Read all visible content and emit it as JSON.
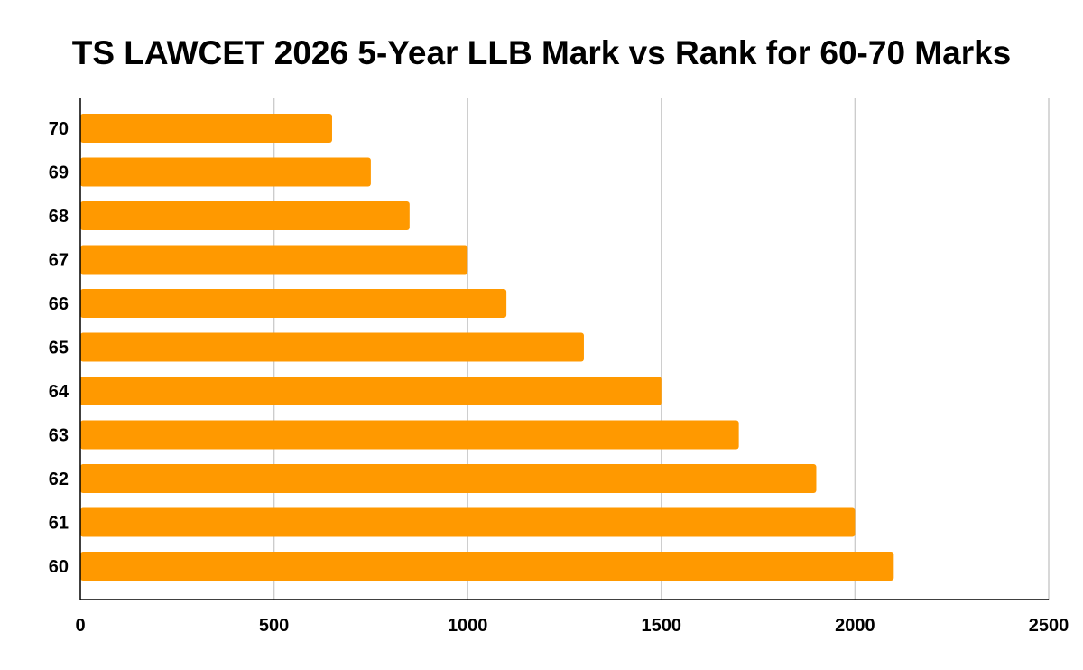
{
  "chart_data": {
    "type": "bar",
    "orientation": "horizontal",
    "title": "TS LAWCET 2026 5-Year LLB Mark vs Rank for 60-70 Marks",
    "xlabel": "",
    "ylabel": "",
    "categories": [
      "70",
      "69",
      "68",
      "67",
      "66",
      "65",
      "64",
      "63",
      "62",
      "61",
      "60"
    ],
    "values": [
      650,
      750,
      850,
      1000,
      1100,
      1300,
      1500,
      1700,
      1900,
      2000,
      2100
    ],
    "xlim": [
      0,
      2500
    ],
    "x_ticks": [
      "0",
      "500",
      "1000",
      "1500",
      "2000",
      "2500"
    ],
    "grid": true,
    "legend": "none",
    "bar_color": "#ff9900",
    "grid_color": "#cccccc"
  }
}
